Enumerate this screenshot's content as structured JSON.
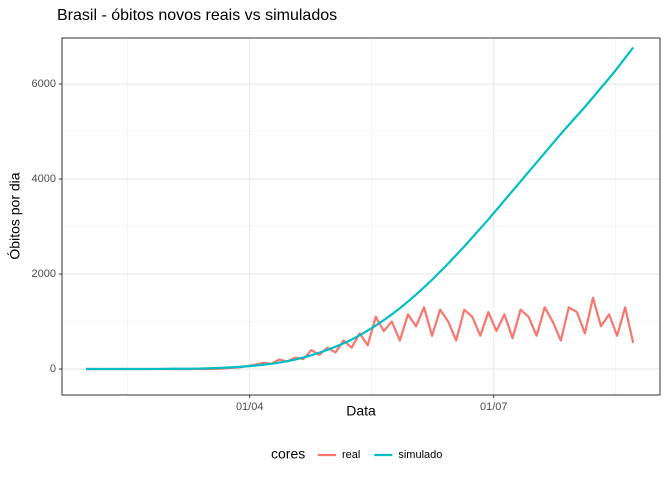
{
  "chart_data": {
    "type": "line",
    "title": "Brasil - óbitos novos reais vs simulados",
    "x_label": "Data",
    "y_label": "Óbitos por dia",
    "x": [
      31,
      34,
      37,
      40,
      43,
      46,
      49,
      52,
      55,
      58,
      61,
      64,
      67,
      70,
      73,
      76,
      79,
      82,
      85,
      88,
      91,
      94,
      97,
      100,
      103,
      106,
      109,
      112,
      115,
      118,
      121,
      124,
      127,
      130,
      133,
      136,
      139,
      142,
      145,
      148,
      151,
      154,
      157,
      160,
      163,
      166,
      169,
      172,
      175,
      178,
      181,
      184,
      187,
      190,
      193,
      196,
      199,
      202,
      205,
      208,
      211,
      214,
      217,
      220,
      223,
      226,
      229,
      232,
      235
    ],
    "series": [
      {
        "name": "real",
        "color": "#F8766D",
        "values": [
          0,
          0,
          0,
          0,
          0,
          0,
          0,
          0,
          0,
          0,
          0,
          0,
          0,
          0,
          0,
          0,
          3,
          10,
          20,
          35,
          60,
          90,
          130,
          110,
          200,
          160,
          240,
          210,
          400,
          300,
          450,
          350,
          600,
          450,
          750,
          500,
          1100,
          800,
          1000,
          600,
          1150,
          900,
          1300,
          700,
          1250,
          1000,
          600,
          1250,
          1100,
          700,
          1200,
          800,
          1150,
          650,
          1250,
          1100,
          700,
          1300,
          1000,
          600,
          1300,
          1200,
          750,
          1500,
          900,
          1150,
          700,
          1300,
          550
        ]
      },
      {
        "name": "simulado",
        "color": "#00BFC4",
        "values": [
          0,
          0,
          0,
          0,
          0,
          0,
          0,
          0,
          1,
          2,
          3,
          5,
          5,
          7,
          10,
          14,
          20,
          27,
          35,
          45,
          58,
          72,
          90,
          110,
          135,
          165,
          200,
          245,
          290,
          345,
          405,
          470,
          540,
          620,
          710,
          810,
          915,
          1030,
          1150,
          1280,
          1420,
          1565,
          1720,
          1880,
          2050,
          2220,
          2400,
          2580,
          2770,
          2960,
          3150,
          3350,
          3550,
          3750,
          3950,
          4150,
          4350,
          4550,
          4750,
          4950,
          5140,
          5330,
          5520,
          5720,
          5920,
          6120,
          6330,
          6550,
          6770
        ]
      }
    ],
    "xlim": [
      22,
      245
    ],
    "xticks": [
      {
        "value": 92,
        "label": "01/04"
      },
      {
        "value": 183,
        "label": "01/07"
      }
    ],
    "ylim": [
      -547,
      6970
    ],
    "yticks": [
      0,
      2000,
      4000,
      6000
    ],
    "grid": true,
    "minor_grid": true,
    "legend_title": "cores",
    "legend_position": "bottom"
  }
}
